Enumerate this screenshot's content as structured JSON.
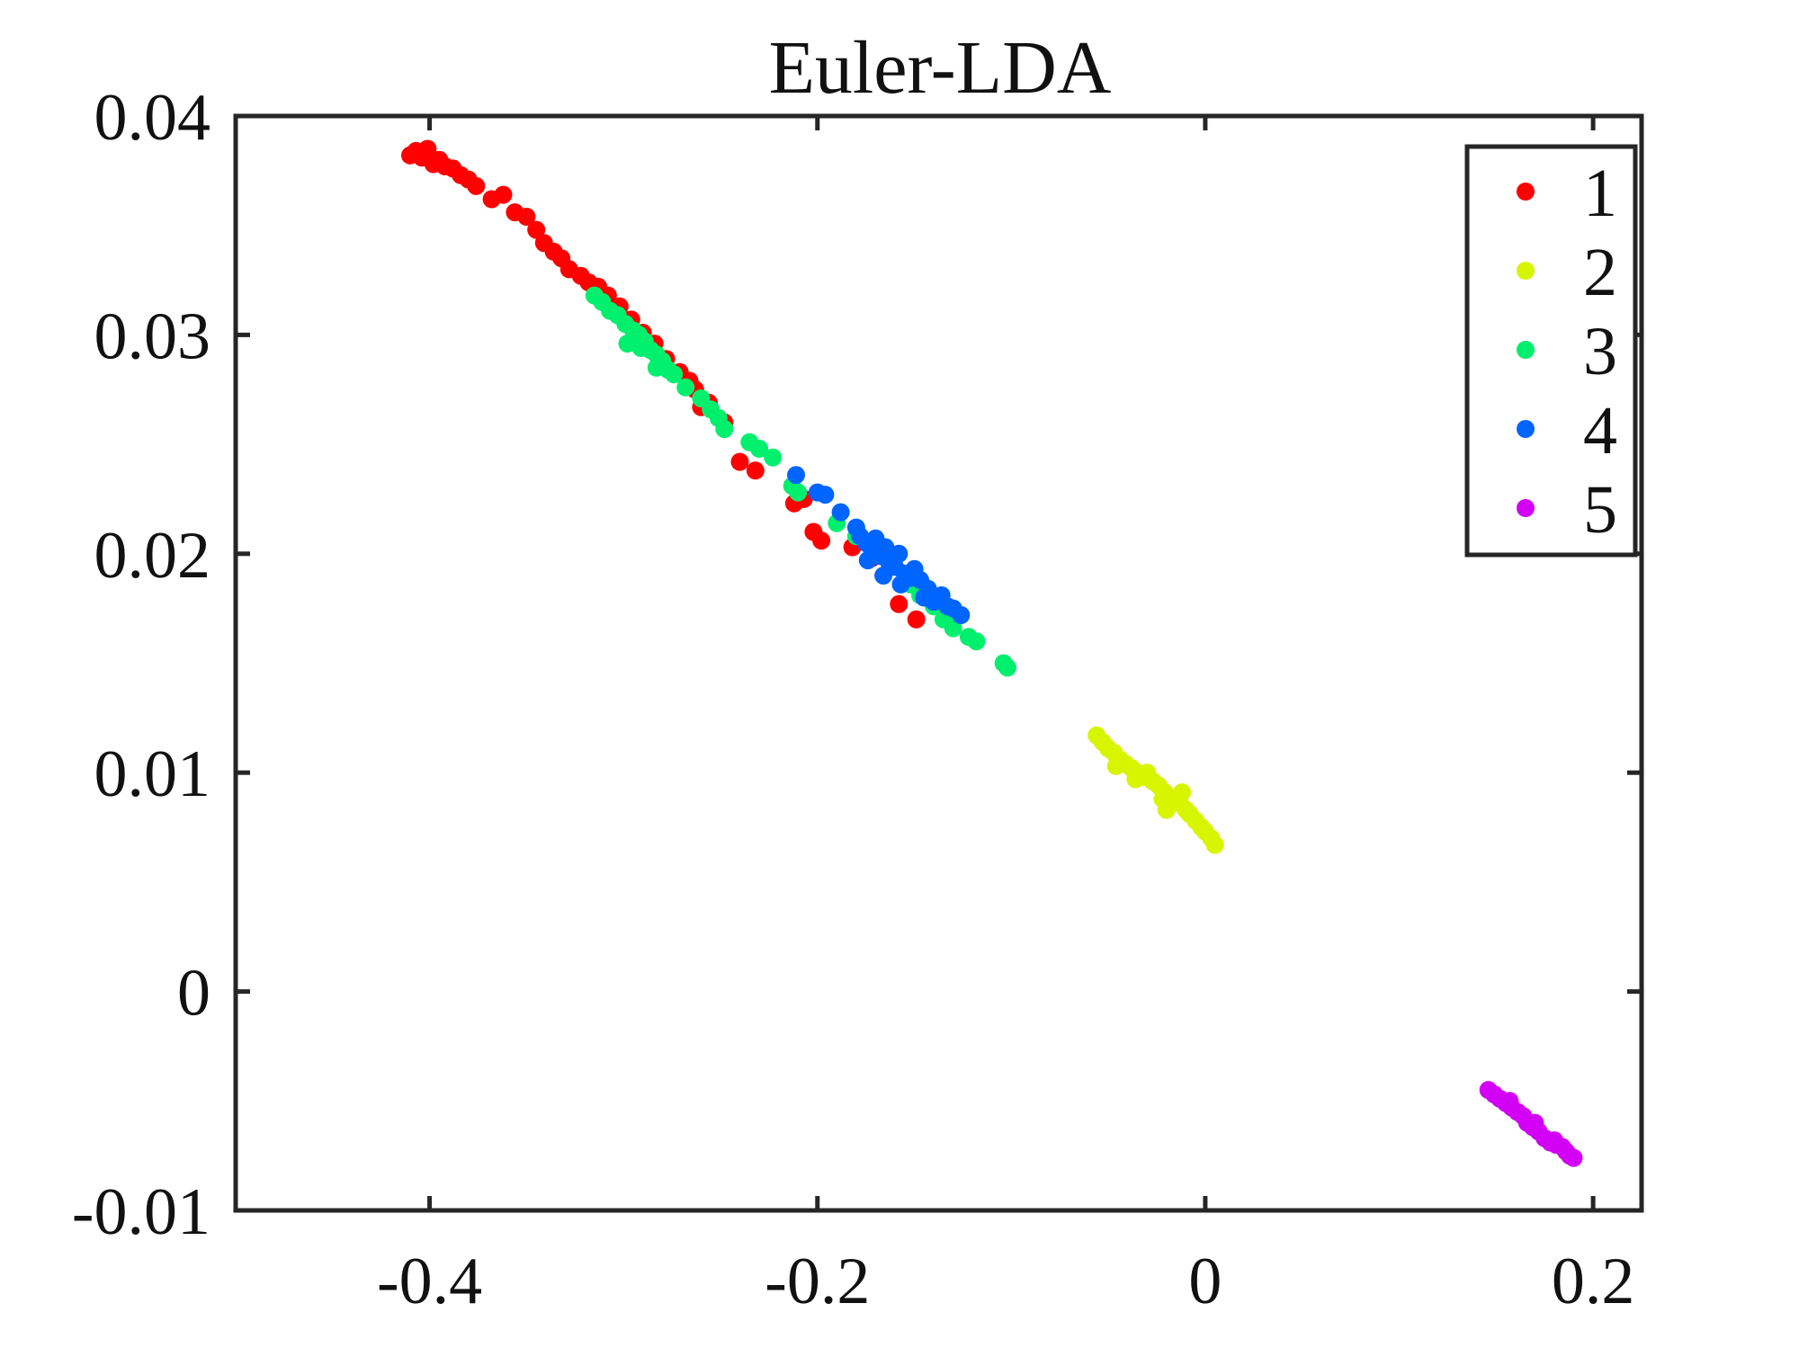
{
  "chart_data": {
    "type": "scatter",
    "title": "Euler-LDA",
    "xlabel": "",
    "ylabel": "",
    "xlim": [
      -0.5,
      0.225
    ],
    "ylim": [
      -0.01,
      0.04
    ],
    "xticks": [
      -0.4,
      -0.2,
      0,
      0.2
    ],
    "xtick_labels": [
      "-0.4",
      "-0.2",
      "0",
      "0.2"
    ],
    "yticks": [
      -0.01,
      0,
      0.01,
      0.02,
      0.03,
      0.04
    ],
    "ytick_labels": [
      "-0.01",
      "0",
      "0.01",
      "0.02",
      "0.03",
      "0.04"
    ],
    "grid": false,
    "legend_position": "top-right",
    "series": [
      {
        "name": "1",
        "color": "#ff0000",
        "points": [
          [
            -0.41,
            0.0382
          ],
          [
            -0.407,
            0.0384
          ],
          [
            -0.404,
            0.0381
          ],
          [
            -0.401,
            0.0385
          ],
          [
            -0.398,
            0.0378
          ],
          [
            -0.395,
            0.038
          ],
          [
            -0.392,
            0.0377
          ],
          [
            -0.388,
            0.0376
          ],
          [
            -0.384,
            0.0373
          ],
          [
            -0.38,
            0.0371
          ],
          [
            -0.376,
            0.0368
          ],
          [
            -0.368,
            0.0362
          ],
          [
            -0.362,
            0.0364
          ],
          [
            -0.356,
            0.0356
          ],
          [
            -0.35,
            0.0354
          ],
          [
            -0.345,
            0.0348
          ],
          [
            -0.341,
            0.0342
          ],
          [
            -0.336,
            0.0338
          ],
          [
            -0.332,
            0.0335
          ],
          [
            -0.328,
            0.033
          ],
          [
            -0.322,
            0.0327
          ],
          [
            -0.318,
            0.0324
          ],
          [
            -0.313,
            0.0322
          ],
          [
            -0.308,
            0.0318
          ],
          [
            -0.302,
            0.0313
          ],
          [
            -0.296,
            0.0307
          ],
          [
            -0.29,
            0.0301
          ],
          [
            -0.284,
            0.0296
          ],
          [
            -0.278,
            0.0289
          ],
          [
            -0.271,
            0.0283
          ],
          [
            -0.266,
            0.0279
          ],
          [
            -0.263,
            0.0275
          ],
          [
            -0.26,
            0.0267
          ],
          [
            -0.256,
            0.0269
          ],
          [
            -0.248,
            0.026
          ],
          [
            -0.24,
            0.0242
          ],
          [
            -0.232,
            0.0238
          ],
          [
            -0.212,
            0.0223
          ],
          [
            -0.207,
            0.0225
          ],
          [
            -0.202,
            0.021
          ],
          [
            -0.198,
            0.0206
          ],
          [
            -0.182,
            0.0203
          ],
          [
            -0.172,
            0.0198
          ],
          [
            -0.158,
            0.0177
          ],
          [
            -0.149,
            0.017
          ]
        ]
      },
      {
        "name": "2",
        "color": "#d8f500",
        "points": [
          [
            -0.056,
            0.0117
          ],
          [
            -0.053,
            0.0114
          ],
          [
            -0.05,
            0.0111
          ],
          [
            -0.047,
            0.0109
          ],
          [
            -0.044,
            0.0106
          ],
          [
            -0.041,
            0.0104
          ],
          [
            -0.038,
            0.0102
          ],
          [
            -0.035,
            0.01
          ],
          [
            -0.032,
            0.0098
          ],
          [
            -0.03,
            0.01
          ],
          [
            -0.027,
            0.0096
          ],
          [
            -0.024,
            0.0094
          ],
          [
            -0.021,
            0.0091
          ],
          [
            -0.018,
            0.0089
          ],
          [
            -0.015,
            0.0087
          ],
          [
            -0.013,
            0.0086
          ],
          [
            -0.01,
            0.0083
          ],
          [
            -0.008,
            0.0081
          ],
          [
            -0.005,
            0.0078
          ],
          [
            -0.002,
            0.0075
          ],
          [
            0.0,
            0.0073
          ],
          [
            0.003,
            0.007
          ],
          [
            0.005,
            0.0067
          ],
          [
            -0.046,
            0.0103
          ],
          [
            -0.036,
            0.0097
          ],
          [
            -0.022,
            0.0088
          ],
          [
            -0.012,
            0.0091
          ],
          [
            -0.02,
            0.0083
          ]
        ]
      },
      {
        "name": "3",
        "color": "#00f06e",
        "points": [
          [
            -0.315,
            0.0318
          ],
          [
            -0.311,
            0.0315
          ],
          [
            -0.307,
            0.0311
          ],
          [
            -0.303,
            0.0309
          ],
          [
            -0.299,
            0.0305
          ],
          [
            -0.295,
            0.0302
          ],
          [
            -0.292,
            0.03
          ],
          [
            -0.289,
            0.0297
          ],
          [
            -0.286,
            0.0293
          ],
          [
            -0.283,
            0.0291
          ],
          [
            -0.28,
            0.0288
          ],
          [
            -0.277,
            0.0284
          ],
          [
            -0.274,
            0.0282
          ],
          [
            -0.298,
            0.0296
          ],
          [
            -0.291,
            0.0294
          ],
          [
            -0.283,
            0.0285
          ],
          [
            -0.268,
            0.0276
          ],
          [
            -0.26,
            0.0271
          ],
          [
            -0.255,
            0.0266
          ],
          [
            -0.251,
            0.0262
          ],
          [
            -0.248,
            0.0257
          ],
          [
            -0.235,
            0.0251
          ],
          [
            -0.23,
            0.0248
          ],
          [
            -0.223,
            0.0244
          ],
          [
            -0.213,
            0.0231
          ],
          [
            -0.21,
            0.0228
          ],
          [
            -0.19,
            0.0214
          ],
          [
            -0.18,
            0.0208
          ],
          [
            -0.168,
            0.02
          ],
          [
            -0.162,
            0.0195
          ],
          [
            -0.152,
            0.0186
          ],
          [
            -0.147,
            0.0181
          ],
          [
            -0.14,
            0.0176
          ],
          [
            -0.135,
            0.017
          ],
          [
            -0.13,
            0.0166
          ],
          [
            -0.122,
            0.0162
          ],
          [
            -0.118,
            0.016
          ],
          [
            -0.104,
            0.015
          ],
          [
            -0.102,
            0.0148
          ]
        ]
      },
      {
        "name": "4",
        "color": "#0064ff",
        "points": [
          [
            -0.211,
            0.0236
          ],
          [
            -0.2,
            0.0228
          ],
          [
            -0.196,
            0.0227
          ],
          [
            -0.188,
            0.0219
          ],
          [
            -0.18,
            0.0212
          ],
          [
            -0.178,
            0.0208
          ],
          [
            -0.175,
            0.0205
          ],
          [
            -0.172,
            0.0202
          ],
          [
            -0.17,
            0.0207
          ],
          [
            -0.168,
            0.0199
          ],
          [
            -0.165,
            0.0203
          ],
          [
            -0.163,
            0.0196
          ],
          [
            -0.16,
            0.0194
          ],
          [
            -0.158,
            0.02
          ],
          [
            -0.155,
            0.0191
          ],
          [
            -0.152,
            0.0189
          ],
          [
            -0.15,
            0.0193
          ],
          [
            -0.147,
            0.0188
          ],
          [
            -0.143,
            0.0184
          ],
          [
            -0.14,
            0.0178
          ],
          [
            -0.136,
            0.0181
          ],
          [
            -0.133,
            0.0176
          ],
          [
            -0.13,
            0.0175
          ],
          [
            -0.126,
            0.0172
          ],
          [
            -0.174,
            0.0197
          ],
          [
            -0.166,
            0.019
          ],
          [
            -0.157,
            0.0186
          ],
          [
            -0.145,
            0.018
          ]
        ]
      },
      {
        "name": "5",
        "color": "#d200f5",
        "points": [
          [
            0.146,
            -0.0045
          ],
          [
            0.149,
            -0.0047
          ],
          [
            0.152,
            -0.0049
          ],
          [
            0.155,
            -0.0051
          ],
          [
            0.158,
            -0.0053
          ],
          [
            0.161,
            -0.0055
          ],
          [
            0.164,
            -0.0057
          ],
          [
            0.166,
            -0.006
          ],
          [
            0.169,
            -0.0062
          ],
          [
            0.172,
            -0.0064
          ],
          [
            0.175,
            -0.0067
          ],
          [
            0.178,
            -0.0069
          ],
          [
            0.181,
            -0.007
          ],
          [
            0.184,
            -0.0071
          ],
          [
            0.186,
            -0.0073
          ],
          [
            0.188,
            -0.0075
          ],
          [
            0.19,
            -0.0076
          ],
          [
            0.157,
            -0.005
          ],
          [
            0.17,
            -0.006
          ],
          [
            0.18,
            -0.0068
          ]
        ]
      }
    ]
  }
}
